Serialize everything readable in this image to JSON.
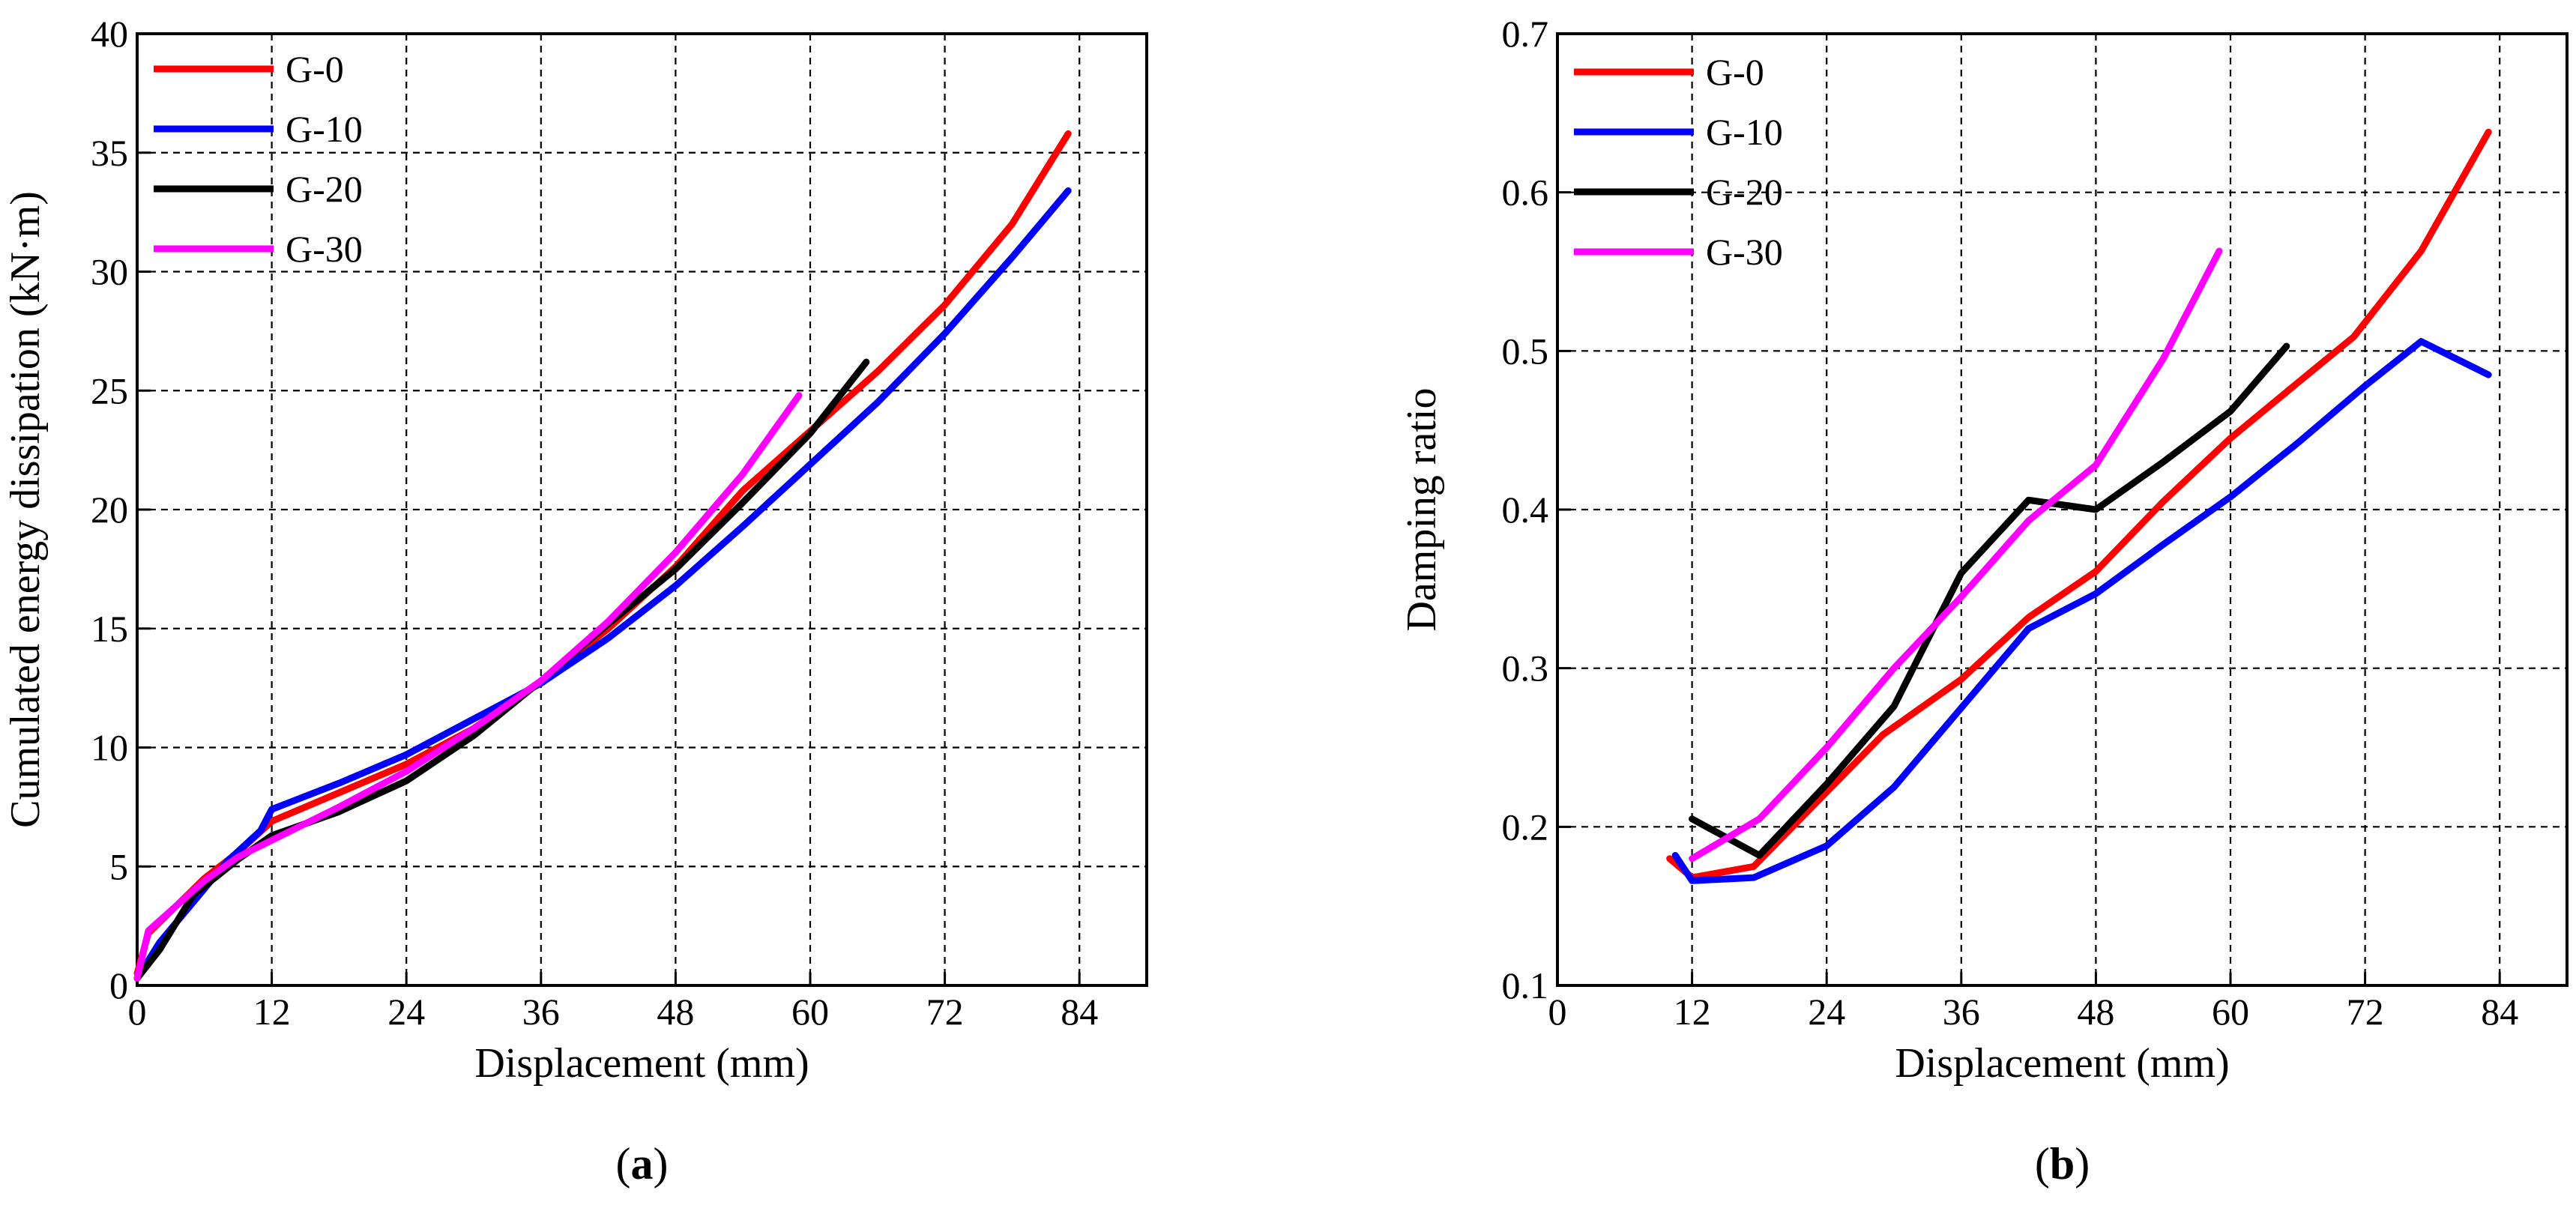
{
  "chart_data": [
    {
      "id": "a",
      "type": "line",
      "panel_label": "(a)",
      "panel_letter": "a",
      "xlabel": "Displacement (mm)",
      "ylabel": "Cumulated energy dissipation (kN·m)",
      "xlim": [
        0,
        90
      ],
      "ylim": [
        0,
        40
      ],
      "xticks": [
        0,
        12,
        24,
        36,
        48,
        60,
        72,
        84
      ],
      "yticks": [
        0,
        5,
        10,
        15,
        20,
        25,
        30,
        35,
        40
      ],
      "grid": true,
      "legend_position": "top-left",
      "series": [
        {
          "name": "G-0",
          "color": "#ff0000",
          "points": [
            [
              0,
              0.5
            ],
            [
              1,
              2.2
            ],
            [
              6,
              4.5
            ],
            [
              9,
              5.6
            ],
            [
              12,
              6.9
            ],
            [
              18,
              8.1
            ],
            [
              24,
              9.3
            ],
            [
              30,
              10.8
            ],
            [
              36,
              12.8
            ],
            [
              42,
              15.0
            ],
            [
              48,
              17.6
            ],
            [
              54,
              20.8
            ],
            [
              60,
              23.3
            ],
            [
              66,
              25.8
            ],
            [
              72,
              28.6
            ],
            [
              78,
              32.0
            ],
            [
              83,
              35.8
            ]
          ]
        },
        {
          "name": "G-10",
          "color": "#0000ff",
          "points": [
            [
              0,
              0.3
            ],
            [
              2,
              1.8
            ],
            [
              5,
              3.5
            ],
            [
              8,
              5.2
            ],
            [
              11,
              6.5
            ],
            [
              12,
              7.4
            ],
            [
              18,
              8.5
            ],
            [
              24,
              9.7
            ],
            [
              30,
              11.2
            ],
            [
              36,
              12.7
            ],
            [
              42,
              14.6
            ],
            [
              48,
              16.8
            ],
            [
              54,
              19.3
            ],
            [
              60,
              21.9
            ],
            [
              66,
              24.5
            ],
            [
              72,
              27.4
            ],
            [
              78,
              30.6
            ],
            [
              83,
              33.4
            ]
          ]
        },
        {
          "name": "G-20",
          "color": "#000000",
          "points": [
            [
              0,
              0.3
            ],
            [
              2,
              1.5
            ],
            [
              5,
              3.8
            ],
            [
              9,
              5.3
            ],
            [
              12,
              6.3
            ],
            [
              18,
              7.3
            ],
            [
              24,
              8.6
            ],
            [
              30,
              10.5
            ],
            [
              36,
              12.8
            ],
            [
              42,
              15.2
            ],
            [
              48,
              17.5
            ],
            [
              54,
              20.3
            ],
            [
              60,
              23.2
            ],
            [
              65,
              26.2
            ]
          ]
        },
        {
          "name": "G-30",
          "color": "#ff00ff",
          "points": [
            [
              0,
              0.3
            ],
            [
              1,
              2.3
            ],
            [
              6,
              4.4
            ],
            [
              9,
              5.4
            ],
            [
              12,
              6.1
            ],
            [
              18,
              7.5
            ],
            [
              24,
              9.0
            ],
            [
              30,
              10.8
            ],
            [
              36,
              12.8
            ],
            [
              42,
              15.3
            ],
            [
              48,
              18.2
            ],
            [
              54,
              21.5
            ],
            [
              59,
              24.8
            ]
          ]
        }
      ]
    },
    {
      "id": "b",
      "type": "line",
      "panel_label": "(b)",
      "panel_letter": "b",
      "xlabel": "Displacement (mm)",
      "ylabel": "Damping ratio",
      "xlim": [
        0,
        90
      ],
      "ylim": [
        0.1,
        0.7
      ],
      "xticks": [
        0,
        12,
        24,
        36,
        48,
        60,
        72,
        84
      ],
      "yticks": [
        0.1,
        0.2,
        0.3,
        0.4,
        0.5,
        0.6,
        0.7
      ],
      "ytick_labels": [
        "0.1",
        "0.2",
        "0.3",
        "0.4",
        "0.5",
        "0.6",
        "0.7"
      ],
      "grid": true,
      "legend_position": "top-left",
      "series": [
        {
          "name": "G-0",
          "color": "#ff0000",
          "points": [
            [
              10,
              0.18
            ],
            [
              12,
              0.168
            ],
            [
              17.5,
              0.175
            ],
            [
              24,
              0.222
            ],
            [
              29,
              0.258
            ],
            [
              36,
              0.293
            ],
            [
              42,
              0.332
            ],
            [
              48,
              0.361
            ],
            [
              54,
              0.405
            ],
            [
              60,
              0.445
            ],
            [
              66,
              0.48
            ],
            [
              71,
              0.509
            ],
            [
              77,
              0.563
            ],
            [
              83,
              0.638
            ]
          ]
        },
        {
          "name": "G-10",
          "color": "#0000ff",
          "points": [
            [
              10.5,
              0.182
            ],
            [
              12,
              0.166
            ],
            [
              17.5,
              0.168
            ],
            [
              24,
              0.188
            ],
            [
              30,
              0.225
            ],
            [
              36,
              0.275
            ],
            [
              42,
              0.325
            ],
            [
              48,
              0.347
            ],
            [
              54,
              0.378
            ],
            [
              60,
              0.408
            ],
            [
              66,
              0.442
            ],
            [
              72,
              0.478
            ],
            [
              77,
              0.506
            ],
            [
              83,
              0.485
            ]
          ]
        },
        {
          "name": "G-20",
          "color": "#000000",
          "points": [
            [
              12,
              0.205
            ],
            [
              18,
              0.182
            ],
            [
              24,
              0.227
            ],
            [
              30,
              0.276
            ],
            [
              36,
              0.36
            ],
            [
              42,
              0.406
            ],
            [
              48,
              0.4
            ],
            [
              54,
              0.43
            ],
            [
              60,
              0.462
            ],
            [
              65,
              0.503
            ]
          ]
        },
        {
          "name": "G-30",
          "color": "#ff00ff",
          "points": [
            [
              12,
              0.18
            ],
            [
              18,
              0.205
            ],
            [
              24,
              0.25
            ],
            [
              30,
              0.3
            ],
            [
              36,
              0.345
            ],
            [
              42,
              0.393
            ],
            [
              48,
              0.428
            ],
            [
              54,
              0.495
            ],
            [
              59,
              0.563
            ]
          ]
        }
      ]
    }
  ]
}
